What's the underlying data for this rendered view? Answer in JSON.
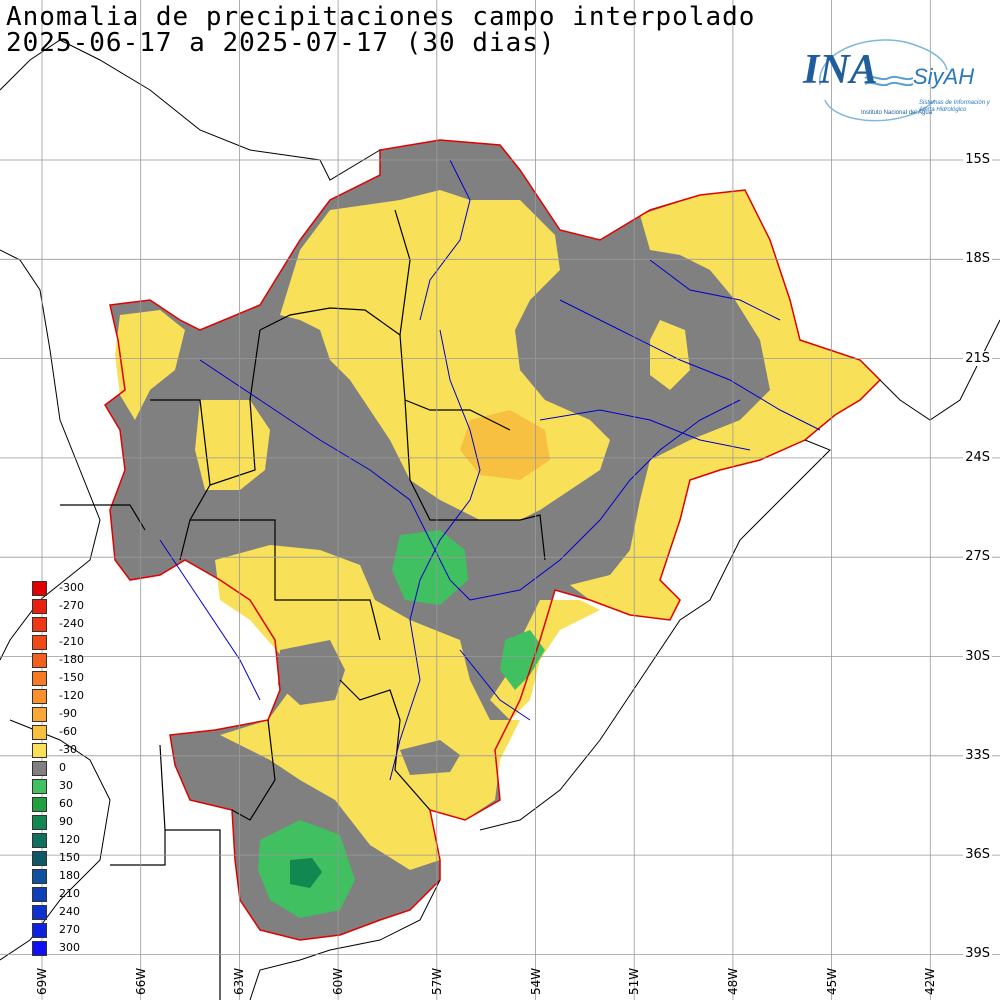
{
  "title": {
    "line1": "Anomalia de precipitaciones campo interpolado",
    "line2": "2025-06-17 a 2025-07-17 (30 dias)"
  },
  "logo": {
    "name": "INA",
    "product": "SiyAH",
    "subtitle": "Instituto Nacional del Agua",
    "tagline": "Sistemas de Información y Alerta Hidrológico"
  },
  "latitude_labels": [
    "15S",
    "18S",
    "21S",
    "24S",
    "27S",
    "30S",
    "33S",
    "36S",
    "39S"
  ],
  "longitude_labels": [
    "69W",
    "66W",
    "63W",
    "60W",
    "57W",
    "54W",
    "51W",
    "48W",
    "45W",
    "42W"
  ],
  "legend": {
    "items": [
      {
        "label": "-300",
        "color": "#e00000"
      },
      {
        "label": "-270",
        "color": "#e82010"
      },
      {
        "label": "-240",
        "color": "#f03818"
      },
      {
        "label": "-210",
        "color": "#f04a18"
      },
      {
        "label": "-180",
        "color": "#f26020"
      },
      {
        "label": "-150",
        "color": "#f57a25"
      },
      {
        "label": "-120",
        "color": "#f89030"
      },
      {
        "label": "-90",
        "color": "#f8a838"
      },
      {
        "label": "-60",
        "color": "#f8c040"
      },
      {
        "label": "-30",
        "color": "#f8e058"
      },
      {
        "label": "0",
        "color": "#808080"
      },
      {
        "label": "30",
        "color": "#40c060"
      },
      {
        "label": "60",
        "color": "#20a040"
      },
      {
        "label": "90",
        "color": "#108850"
      },
      {
        "label": "120",
        "color": "#107060"
      },
      {
        "label": "150",
        "color": "#105868"
      },
      {
        "label": "180",
        "color": "#1050a0"
      },
      {
        "label": "210",
        "color": "#1040b8"
      },
      {
        "label": "240",
        "color": "#1030d0"
      },
      {
        "label": "270",
        "color": "#1020e0"
      },
      {
        "label": "300",
        "color": "#1010f0"
      }
    ]
  },
  "colors": {
    "gray": "#808080",
    "yellow": "#f8e058",
    "orange": "#f8c040",
    "green": "#40c060",
    "dark_green": "#108850",
    "basin_outline": "#e00000",
    "rivers": "#0000cc",
    "borders": "#000000",
    "grid": "#999999"
  }
}
